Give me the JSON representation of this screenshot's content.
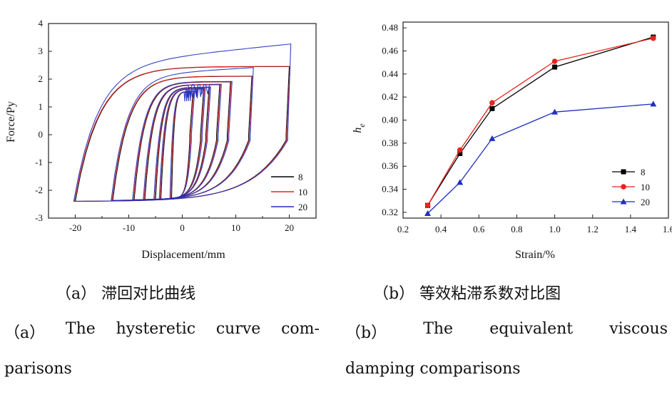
{
  "chart_data": [
    {
      "type": "line",
      "panel": "a",
      "xlabel": "Displacement/mm",
      "ylabel": "Force/Py",
      "xlim": [
        -25,
        25
      ],
      "ylim": [
        -3,
        4
      ],
      "xticks": [
        -20,
        -10,
        0,
        10,
        20
      ],
      "yticks": [
        -3,
        -2,
        -1,
        0,
        1,
        2,
        3,
        4
      ],
      "legend_position": "bottom-right",
      "series": [
        {
          "name": "8",
          "color": "#000000"
        },
        {
          "name": "10",
          "color": "#e8231c"
        },
        {
          "name": "20",
          "color": "#1f2fbf"
        }
      ],
      "loop_amplitudes_mm": [
        2,
        4,
        5,
        7,
        9,
        13,
        20
      ],
      "min_force": -2.4,
      "max_force_series_20": 3.4
    },
    {
      "type": "line",
      "panel": "b",
      "xlabel": "Strain/%",
      "ylabel": "h",
      "ylabel_sub": "e",
      "xlim": [
        0.2,
        1.6
      ],
      "ylim": [
        0.315,
        0.485
      ],
      "xticks": [
        "0.2",
        "0.4",
        "0.6",
        "0.8",
        "1.0",
        "1.2",
        "1.4",
        "1.6"
      ],
      "yticks": [
        "0.32",
        "0.34",
        "0.36",
        "0.38",
        "0.40",
        "0.42",
        "0.44",
        "0.46",
        "0.48"
      ],
      "legend_position": "bottom-right",
      "x": [
        0.33,
        0.5,
        0.67,
        1.0,
        1.52
      ],
      "series": [
        {
          "name": "8",
          "color": "#000000",
          "marker": "square",
          "values": [
            0.326,
            0.371,
            0.41,
            0.446,
            0.472
          ]
        },
        {
          "name": "10",
          "color": "#e8231c",
          "marker": "circle",
          "values": [
            0.326,
            0.374,
            0.415,
            0.451,
            0.471
          ]
        },
        {
          "name": "20",
          "color": "#1f2fbf",
          "marker": "triangle",
          "values": [
            0.319,
            0.346,
            0.384,
            0.407,
            0.414
          ]
        }
      ]
    }
  ],
  "captions": {
    "a_zh": "（a） 滞回对比曲线",
    "b_zh": "（b） 等效粘滞系数对比图",
    "a_en_line1": [
      "（a）",
      "The",
      "hysteretic",
      "curve",
      "com-"
    ],
    "a_en_line2": "parisons",
    "b_en_line1": [
      "（b）",
      "The",
      "equivalent",
      "viscous"
    ],
    "b_en_line2": "damping comparisons"
  }
}
